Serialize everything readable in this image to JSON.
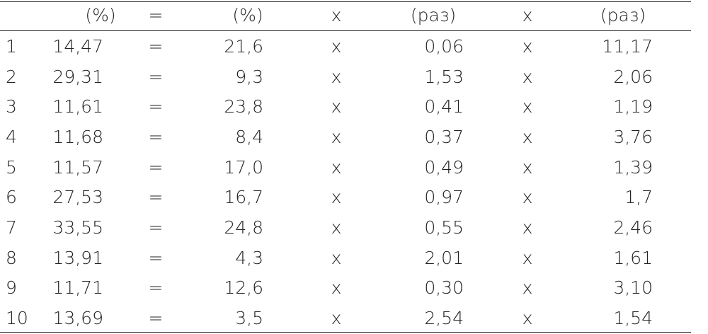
{
  "table": {
    "header": [
      "(%)",
      "=",
      "(%)",
      "x",
      "(раз)",
      "x",
      "(раз)"
    ],
    "rows": [
      [
        "1",
        "14,47",
        "=",
        "21,6",
        "x",
        "0,06",
        "x",
        "11,17"
      ],
      [
        "2",
        "29,31",
        "=",
        "9,3",
        "x",
        "1,53",
        "x",
        "2,06"
      ],
      [
        "3",
        "11,61",
        "=",
        "23,8",
        "x",
        "0,41",
        "x",
        "1,19"
      ],
      [
        "4",
        "11,68",
        "=",
        "8,4",
        "x",
        "0,37",
        "x",
        "3,76"
      ],
      [
        "5",
        "11,57",
        "=",
        "17,0",
        "x",
        "0,49",
        "x",
        "1,39"
      ],
      [
        "6",
        "27,53",
        "=",
        "16,7",
        "x",
        "0,97",
        "x",
        "1,7"
      ],
      [
        "7",
        "33,55",
        "=",
        "24,8",
        "x",
        "0,55",
        "x",
        "2,46"
      ],
      [
        "8",
        "13,91",
        "=",
        "4,3",
        "x",
        "2,01",
        "x",
        "1,61"
      ],
      [
        "9",
        "11,71",
        "=",
        "12,6",
        "x",
        "0,30",
        "x",
        "3,10"
      ],
      [
        "10",
        "13,69",
        "=",
        "3,5",
        "x",
        "2,54",
        "x",
        "1,54"
      ]
    ]
  }
}
